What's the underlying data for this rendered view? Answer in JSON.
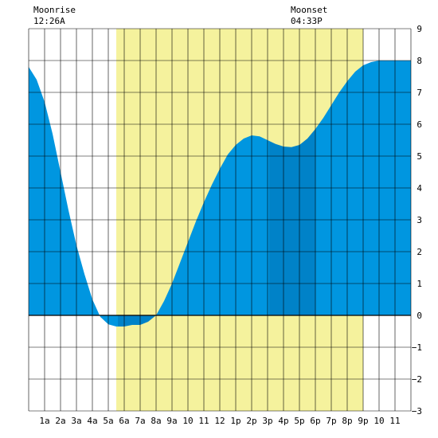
{
  "chart_data": {
    "type": "area",
    "title": "",
    "xlabel": "",
    "ylabel": "",
    "ylim": [
      -3,
      9
    ],
    "xlim": [
      0,
      24
    ],
    "grid": true,
    "x_ticks": [
      {
        "x": 1,
        "label": "1a"
      },
      {
        "x": 2,
        "label": "2a"
      },
      {
        "x": 3,
        "label": "3a"
      },
      {
        "x": 4,
        "label": "4a"
      },
      {
        "x": 5,
        "label": "5a"
      },
      {
        "x": 6,
        "label": "6a"
      },
      {
        "x": 7,
        "label": "7a"
      },
      {
        "x": 8,
        "label": "8a"
      },
      {
        "x": 9,
        "label": "9a"
      },
      {
        "x": 10,
        "label": "10"
      },
      {
        "x": 11,
        "label": "11"
      },
      {
        "x": 12,
        "label": "12"
      },
      {
        "x": 13,
        "label": "1p"
      },
      {
        "x": 14,
        "label": "2p"
      },
      {
        "x": 15,
        "label": "3p"
      },
      {
        "x": 16,
        "label": "4p"
      },
      {
        "x": 17,
        "label": "5p"
      },
      {
        "x": 18,
        "label": "6p"
      },
      {
        "x": 19,
        "label": "7p"
      },
      {
        "x": 20,
        "label": "8p"
      },
      {
        "x": 21,
        "label": "9p"
      },
      {
        "x": 22,
        "label": "10"
      },
      {
        "x": 23,
        "label": "11"
      }
    ],
    "y_ticks": [
      -3,
      -2,
      -1,
      0,
      1,
      2,
      3,
      4,
      5,
      6,
      7,
      8,
      9
    ],
    "daylight": {
      "start": 5.5,
      "end": 21.0
    },
    "bands": [
      {
        "start": 0.0,
        "end": 5.6
      },
      {
        "start": 5.6,
        "end": 7.95
      },
      {
        "start": 7.95,
        "end": 15.1
      },
      {
        "start": 15.1,
        "end": 18.0
      },
      {
        "start": 18.0,
        "end": 24.0
      }
    ],
    "series": [
      {
        "x": [
          0,
          0.5,
          1,
          1.5,
          2,
          2.5,
          3,
          3.5,
          4,
          4.5,
          5,
          5.5,
          6,
          6.5,
          7,
          7.5,
          8,
          8.5,
          9,
          9.5,
          10,
          10.5,
          11,
          11.5,
          12,
          12.5,
          13,
          13.5,
          14,
          14.5,
          15,
          15.5,
          16,
          16.5,
          17,
          17.5,
          18,
          18.5,
          19,
          19.5,
          20,
          20.5,
          21,
          21.5,
          22,
          22.5,
          23,
          23.5,
          24
        ],
        "values": [
          7.8,
          7.4,
          6.7,
          5.7,
          4.5,
          3.3,
          2.2,
          1.3,
          0.5,
          -0.05,
          -0.28,
          -0.35,
          -0.35,
          -0.3,
          -0.3,
          -0.2,
          0.0,
          0.45,
          1.0,
          1.65,
          2.3,
          2.95,
          3.55,
          4.1,
          4.6,
          5.05,
          5.35,
          5.55,
          5.65,
          5.62,
          5.5,
          5.38,
          5.3,
          5.28,
          5.35,
          5.55,
          5.85,
          6.2,
          6.6,
          7.0,
          7.35,
          7.65,
          7.85,
          7.95,
          8.0,
          8.0,
          8.0,
          8.0,
          8.0
        ]
      }
    ],
    "colors": {
      "daylight": "#f5f29d",
      "band_light": "#0096e0",
      "band_dark": "#0082c8",
      "grid": "#000000",
      "background": "#ffffff"
    },
    "annotations": {
      "moonrise_label": "Moonrise",
      "moonrise_time": "12:26A",
      "moonset_label": "Moonset",
      "moonset_time": "04:33P"
    }
  }
}
